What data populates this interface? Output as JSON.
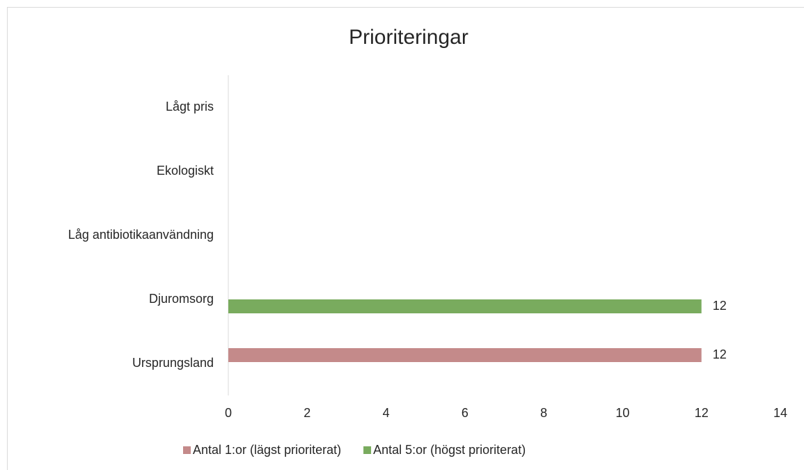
{
  "chart_data": {
    "type": "barh",
    "title": "Prioriteringar",
    "categories": [
      "Lågt pris",
      "Ekologiskt",
      "Låg antibiotikaanvändning",
      "Djuromsorg",
      "Ursprungsland"
    ],
    "series": [
      {
        "name": "Antal 1:or (lägst prioriterat)",
        "color": "#c48a8a",
        "values": [
          null,
          null,
          null,
          null,
          12
        ]
      },
      {
        "name": "Antal 5:or (högst prioriterat)",
        "color": "#79ab5e",
        "values": [
          null,
          null,
          null,
          12,
          null
        ]
      }
    ],
    "xlim": [
      0,
      14
    ],
    "xticks": [
      0,
      2,
      4,
      6,
      8,
      10,
      12,
      14
    ],
    "grid": false,
    "legend": "bottom"
  }
}
